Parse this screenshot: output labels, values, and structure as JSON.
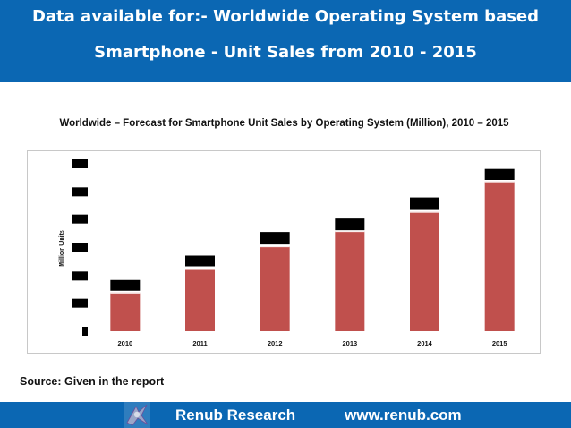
{
  "header": {
    "line1": "Data available for:- Worldwide Operating System based",
    "line2": "Smartphone - Unit Sales from 2010 - 2015"
  },
  "chart_data": {
    "type": "bar",
    "title": "Worldwide – Forecast for Smartphone Unit Sales by Operating System (Million), 2010 – 2015",
    "xlabel": "",
    "ylabel": "Million Units",
    "categories": [
      "2010",
      "2011",
      "2012",
      "2013",
      "2014",
      "2015"
    ],
    "values": [
      46,
      75,
      102,
      119,
      143,
      178
    ],
    "ylim": [
      0,
      200
    ],
    "ytick_count": 7,
    "value_labels_redacted": true,
    "y_tick_labels_redacted": true,
    "bar_color": "#c0504d",
    "redaction_color": "#000000"
  },
  "source": "Source: Given in the report",
  "footer": {
    "company": "Renub Research",
    "url": "www.renub.com"
  },
  "colors": {
    "header_bg": "#0b67b3",
    "footer_bg": "#0b67b3",
    "bar": "#c0504d"
  }
}
